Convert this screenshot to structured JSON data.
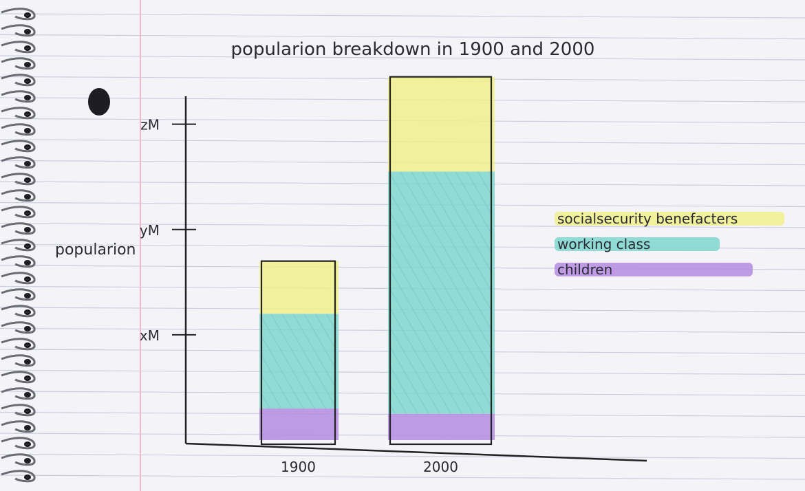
{
  "chart_data": {
    "type": "bar",
    "stacked": true,
    "title": "popularion breakdown in 1900 and 2000",
    "ylabel": "popularion",
    "xlabel": "",
    "y_ticks": [
      {
        "label": "xM",
        "value": 1
      },
      {
        "label": "yM",
        "value": 2
      },
      {
        "label": "zM",
        "value": 3
      }
    ],
    "ylim": [
      0,
      3.2
    ],
    "categories": [
      "1900",
      "2000"
    ],
    "series": [
      {
        "name": "children",
        "color": "#b48be0",
        "values": [
          0.3,
          0.25
        ]
      },
      {
        "name": "working class",
        "color": "#7fd6cf",
        "values": [
          0.9,
          2.3
        ]
      },
      {
        "name": "socialsecurity benefacters",
        "color": "#eef08a",
        "values": [
          0.5,
          0.9
        ]
      }
    ],
    "legend_position": "right"
  }
}
